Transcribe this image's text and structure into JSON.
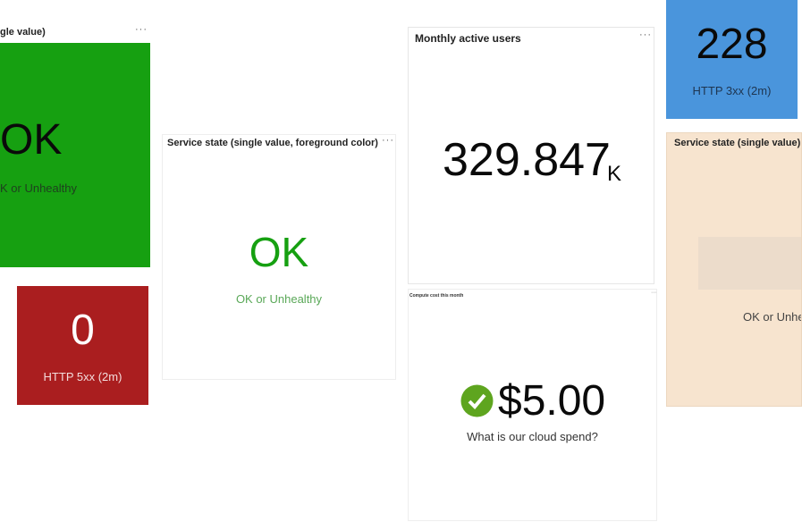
{
  "tiles": [
    {
      "title": "gle value)",
      "menu": "···",
      "value": "OK",
      "subtitle": "K or Unhealthy"
    },
    {
      "value": "0",
      "subtitle": "HTTP 5xx (2m)"
    },
    {
      "title": "Service state (single value, foreground color)",
      "menu": "···",
      "value": "OK",
      "subtitle": "OK or Unhealthy"
    },
    {
      "title": "Monthly active users",
      "menu": "···",
      "value": "329.847",
      "unit": "K"
    },
    {
      "title": "Compute cost this month",
      "menu": "···",
      "value": "$5.00",
      "subtitle": "What is our cloud spend?"
    },
    {
      "value": "228",
      "subtitle": "HTTP 3xx (2m)"
    },
    {
      "title": "Service state (single value)",
      "subtitle": "OK or Unhe"
    }
  ]
}
